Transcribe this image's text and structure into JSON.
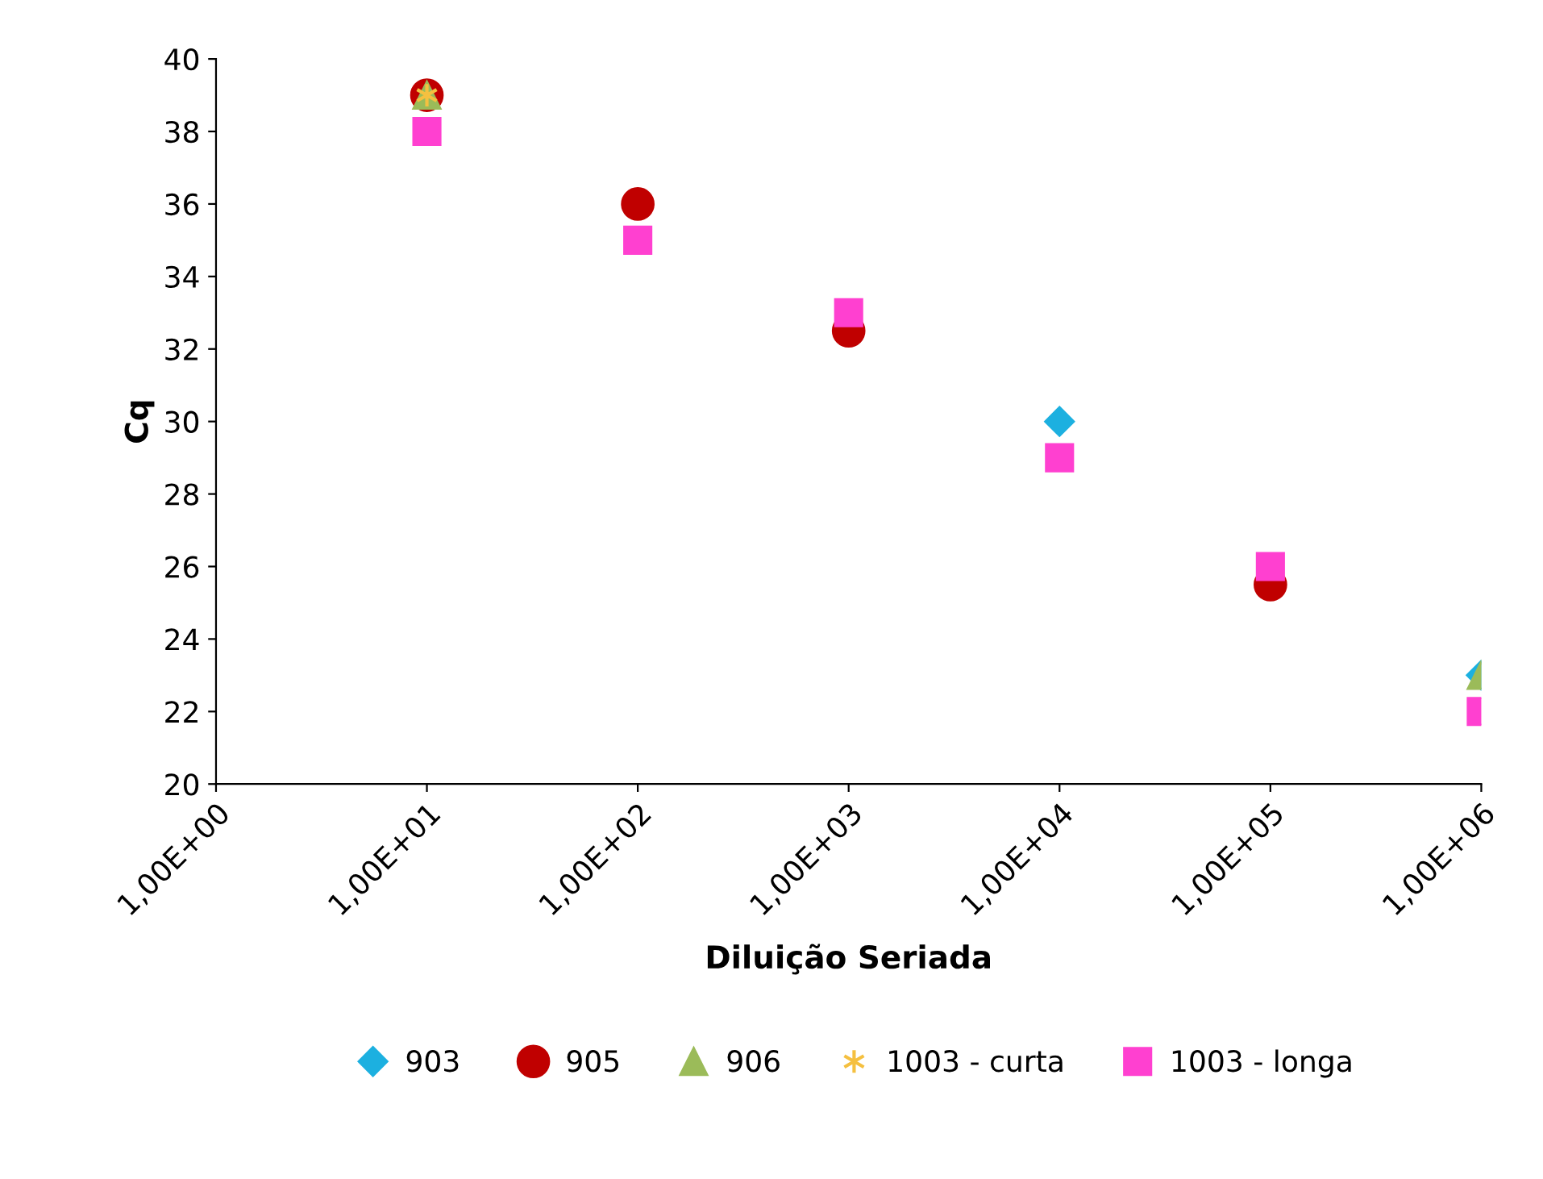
{
  "chart_data": {
    "type": "scatter",
    "xlabel": "Diluição Seriada",
    "ylabel": "Cq",
    "categories": [
      "1,00E+00",
      "1,00E+01",
      "1,00E+02",
      "1,00E+03",
      "1,00E+04",
      "1,00E+05",
      "1,00E+06"
    ],
    "ylim": [
      20,
      40
    ],
    "yticks": [
      20,
      22,
      24,
      26,
      28,
      30,
      32,
      34,
      36,
      38,
      40
    ],
    "grid": false,
    "legend": "bottom",
    "series": [
      {
        "name": "903",
        "color": "#1cb0e0",
        "marker": "diamond",
        "values": [
          null,
          null,
          null,
          null,
          30,
          null,
          23
        ]
      },
      {
        "name": "905",
        "color": "#c00000",
        "marker": "circle",
        "values": [
          null,
          39,
          36,
          32.5,
          null,
          25.5,
          null
        ]
      },
      {
        "name": "906",
        "color": "#9bbb59",
        "marker": "triangle",
        "values": [
          null,
          39,
          null,
          null,
          null,
          null,
          23
        ]
      },
      {
        "name": "1003 - curta",
        "color": "#f5c040",
        "marker": "cross",
        "values": [
          null,
          39,
          null,
          null,
          null,
          null,
          null
        ]
      },
      {
        "name": "1003 - longa",
        "color": "#ff40d0",
        "marker": "square",
        "values": [
          null,
          38,
          35,
          33,
          29,
          26,
          22
        ]
      }
    ]
  }
}
